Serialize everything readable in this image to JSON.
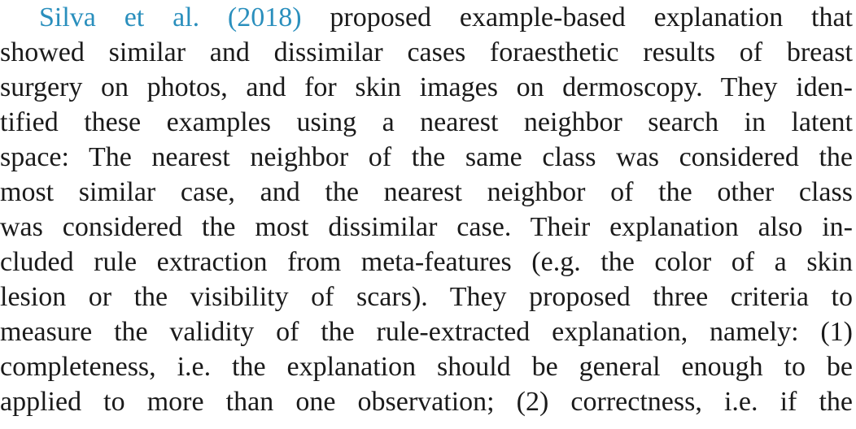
{
  "paragraph": {
    "citation": "Silva et al. (2018)",
    "lines": [
      " proposed example-based explanation that",
      "showed similar and dissimilar cases foraesthetic results of breast",
      "surgery on photos, and for skin images on dermoscopy. They iden-",
      "tified these examples using a nearest neighbor search in latent",
      "space: The nearest neighbor of the same class was considered the",
      "most similar case, and the nearest neighbor of the other class",
      "was considered the most dissimilar case. Their explanation also in-",
      "cluded rule extraction from meta-features (e.g. the color of a skin",
      "lesion or the visibility of scars). They proposed three criteria to",
      "measure the validity of the rule-extracted explanation, namely: (1)",
      "completeness, i.e. the explanation should be general enough to be",
      "applied to more than one observation; (2) correctness, i.e. if the"
    ]
  }
}
